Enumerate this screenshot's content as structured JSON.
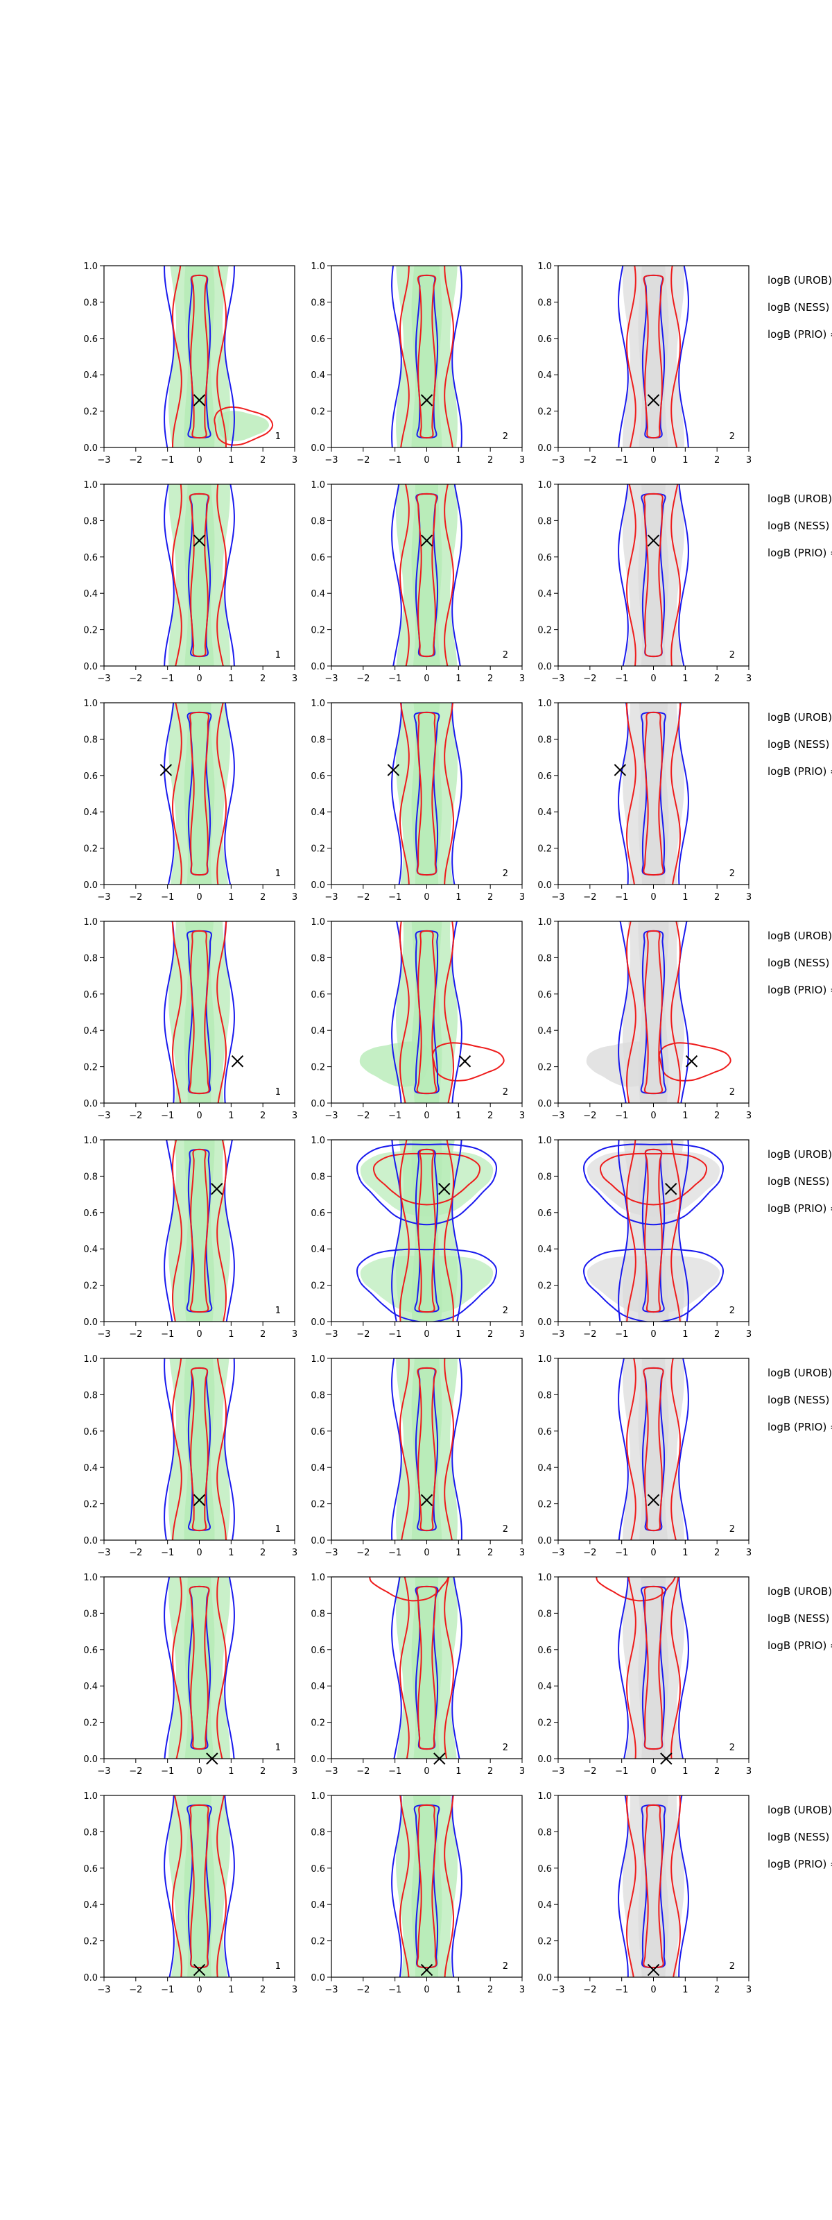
{
  "figure": {
    "side_text_labels": [
      "logB (UROB) =",
      "logB (NESS) =",
      "logB (PRIO) ="
    ]
  },
  "colors": {
    "fill_col1": "#b7ebb7",
    "fill_col2": "#b7ebb7",
    "fill_col3": "#dcdcdc",
    "red": "#ee1c1c",
    "blue": "#1a1aee",
    "marker": "#000000"
  },
  "chart_data": {
    "type": "contour-grid",
    "rows": 8,
    "cols": 3,
    "xlim": [
      -3,
      3
    ],
    "ylim": [
      0,
      1
    ],
    "x_ticks": [
      -3,
      -2,
      -1,
      0,
      1,
      2,
      3
    ],
    "y_ticks": [
      0.0,
      0.2,
      0.4,
      0.6,
      0.8,
      1.0
    ],
    "x_tick_labels": [
      "−3",
      "−2",
      "−1",
      "0",
      "1",
      "2",
      "3"
    ],
    "y_tick_labels": [
      "0.0",
      "0.2",
      "0.4",
      "0.6",
      "0.8",
      "1.0"
    ],
    "panel_numbers": [
      "1",
      "2",
      "2"
    ],
    "markers": [
      {
        "row": 1,
        "x": 0.0,
        "y": 0.26
      },
      {
        "row": 2,
        "x": 0.0,
        "y": 0.69
      },
      {
        "row": 3,
        "x": -1.05,
        "y": 0.63
      },
      {
        "row": 4,
        "x": 1.2,
        "y": 0.23
      },
      {
        "row": 5,
        "x": 0.55,
        "y": 0.73
      },
      {
        "row": 6,
        "x": 0.0,
        "y": 0.22
      },
      {
        "row": 7,
        "x": 0.4,
        "y": 0.0
      },
      {
        "row": 8,
        "x": 0.0,
        "y": 0.04
      }
    ]
  }
}
